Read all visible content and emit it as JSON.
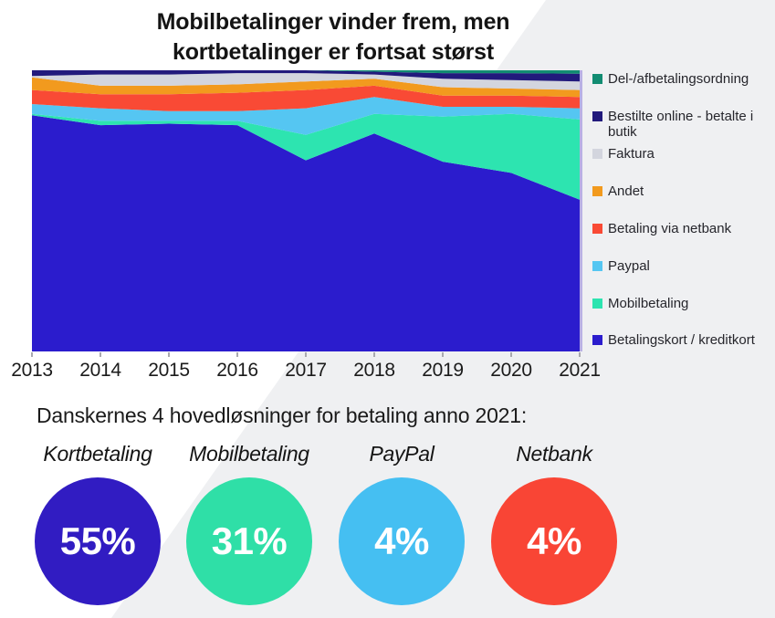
{
  "title": {
    "line1": "Mobilbetalinger vinder frem, men",
    "line2": "kortbetalinger er fortsat størst"
  },
  "legend": {
    "items": [
      {
        "label": "Del-/afbetalingsordning",
        "color": "#128c72"
      },
      {
        "label": "Bestilte online - betalte i butik",
        "color": "#221a7c"
      },
      {
        "label": "Faktura",
        "color": "#d3d5de"
      },
      {
        "label": "Andet",
        "color": "#f29a1e"
      },
      {
        "label": "Betaling via netbank",
        "color": "#f94a35"
      },
      {
        "label": "Paypal",
        "color": "#55c6f2"
      },
      {
        "label": "Mobilbetaling",
        "color": "#2de4b0"
      },
      {
        "label": "Betalingskort / kreditkort",
        "color": "#2b1ccd"
      }
    ]
  },
  "x_axis": {
    "labels": [
      "2013",
      "2014",
      "2015",
      "2016",
      "2017",
      "2018",
      "2019",
      "2020",
      "2021"
    ]
  },
  "chart_data": [
    {
      "type": "area",
      "stacked": true,
      "title": "Mobilbetalinger vinder frem, men kortbetalinger er fortsat størst",
      "x": [
        2013,
        2014,
        2015,
        2016,
        2017,
        2018,
        2019,
        2020,
        2021
      ],
      "units": "% share",
      "ylim": [
        0,
        100
      ],
      "grid": false,
      "legend_position": "right",
      "series": [
        {
          "name": "Betalingskort / kreditkort",
          "color": "#2b1ccd",
          "values": [
            84,
            80.5,
            81,
            80.5,
            68,
            77.5,
            67.5,
            63.5,
            54
          ]
        },
        {
          "name": "Mobilbetaling",
          "color": "#2de4b0",
          "values": [
            0.5,
            1.5,
            1,
            1.5,
            9,
            7,
            16,
            21,
            28.5
          ]
        },
        {
          "name": "Paypal",
          "color": "#55c6f2",
          "values": [
            3.5,
            4.5,
            3.5,
            3.5,
            9.5,
            6,
            3.5,
            2.5,
            4
          ]
        },
        {
          "name": "Betaling via netbank",
          "color": "#f94a35",
          "values": [
            5,
            5,
            6,
            6.5,
            6.5,
            4,
            4,
            4,
            4
          ]
        },
        {
          "name": "Andet",
          "color": "#f29a1e",
          "values": [
            4.5,
            3,
            3,
            3,
            3,
            2.5,
            3,
            2.5,
            2.5
          ]
        },
        {
          "name": "Faktura",
          "color": "#d3d5de",
          "values": [
            0.5,
            4,
            4,
            4,
            3,
            1.5,
            3,
            3,
            3
          ]
        },
        {
          "name": "Bestilte online - betalte i butik",
          "color": "#221a7c",
          "values": [
            2,
            1.5,
            1.5,
            1,
            1,
            1,
            2,
            2.5,
            2.8
          ]
        },
        {
          "name": "Del-/afbetalingsordning",
          "color": "#128c72",
          "values": [
            0,
            0,
            0,
            0,
            0,
            0.5,
            1,
            1,
            1.2
          ]
        }
      ]
    },
    {
      "type": "pie",
      "title": "Danskernes 4 hovedløsninger for betaling anno 2021:",
      "categories": [
        "Kortbetaling",
        "Mobilbetaling",
        "PayPal",
        "Netbank"
      ],
      "values": [
        55,
        31,
        4,
        4
      ],
      "layout": "four standalone percentage circles"
    }
  ],
  "summary": {
    "heading": "Danskernes 4 hovedløsninger for betaling anno 2021:",
    "items": [
      {
        "label": "Kortbetaling",
        "value": "55%",
        "color": "#311cc2"
      },
      {
        "label": "Mobilbetaling",
        "value": "31%",
        "color": "#2fdfa7"
      },
      {
        "label": "PayPal",
        "value": "4%",
        "color": "#45bff2"
      },
      {
        "label": "Netbank",
        "value": "4%",
        "color": "#f94535"
      }
    ]
  },
  "colors": {
    "background_left": "#ffffff",
    "background_right": "#eff0f2",
    "tick": "#a9a9af",
    "plot_right_edge": "#b9b0e4"
  }
}
